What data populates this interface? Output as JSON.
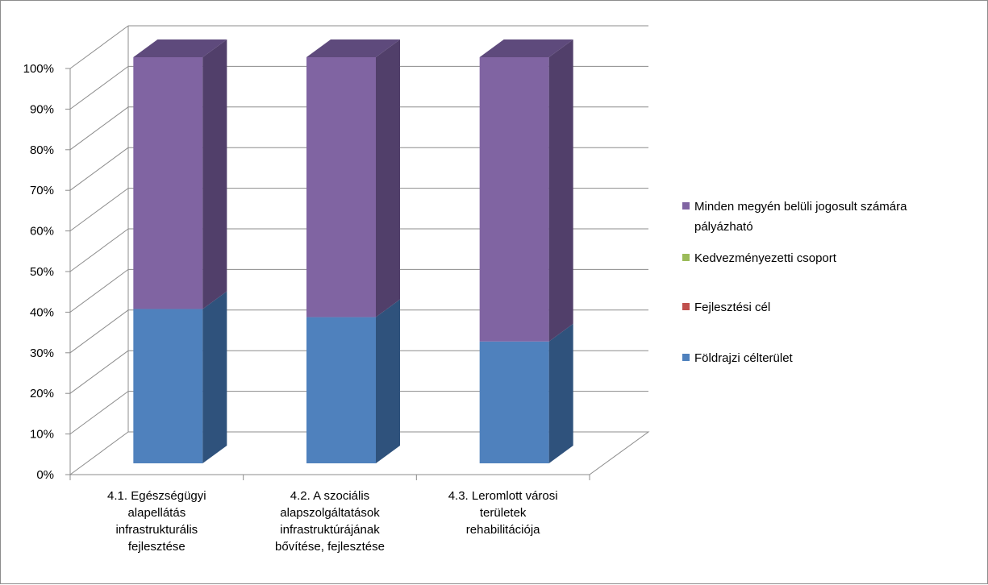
{
  "chart_data": {
    "type": "bar",
    "stacked": true,
    "three_d": true,
    "percent_stacked": true,
    "categories": [
      [
        "4.1. Egészségügyi",
        "alapellátás",
        "infrastrukturális",
        "fejlesztése"
      ],
      [
        "4.2. A szociális",
        "alapszolgáltatások",
        "infrastruktúrájának",
        "bővítése, fejlesztése"
      ],
      [
        "4.3. Leromlott városi",
        "területek",
        "rehabilitációja"
      ]
    ],
    "series": [
      {
        "name": "Földrajzi célterület",
        "values": [
          38,
          36,
          30
        ],
        "color": "#4f81bd",
        "side": "#2f527c",
        "top": "#5b8fd0"
      },
      {
        "name": "Fejlesztési cél",
        "values": [
          0,
          0,
          0
        ],
        "color": "#c0504d",
        "side": "#8c3836",
        "top": "#c0504d"
      },
      {
        "name": "Kedvezményezetti csoport",
        "values": [
          0,
          0,
          0
        ],
        "color": "#9bbb59",
        "side": "#6f8a3c",
        "top": "#9bbb59"
      },
      {
        "name": "Minden megyén belüli jogosult számára pályázható",
        "values": [
          62,
          64,
          70
        ],
        "color": "#8064a2",
        "side": "#513f6a",
        "top": "#5e4a7c"
      }
    ],
    "legend_order": [
      3,
      2,
      1,
      0
    ],
    "legend_lines": [
      [
        "Minden megyén belüli jogosult számára",
        "pályázható"
      ],
      [
        "Kedvezményezetti csoport"
      ],
      [
        "Fejlesztési cél"
      ],
      [
        "Földrajzi célterület"
      ]
    ],
    "y_ticks": [
      "0%",
      "10%",
      "20%",
      "30%",
      "40%",
      "50%",
      "60%",
      "70%",
      "80%",
      "90%",
      "100%"
    ],
    "ylim": [
      0,
      100
    ],
    "grid": true,
    "legend_position": "right"
  }
}
